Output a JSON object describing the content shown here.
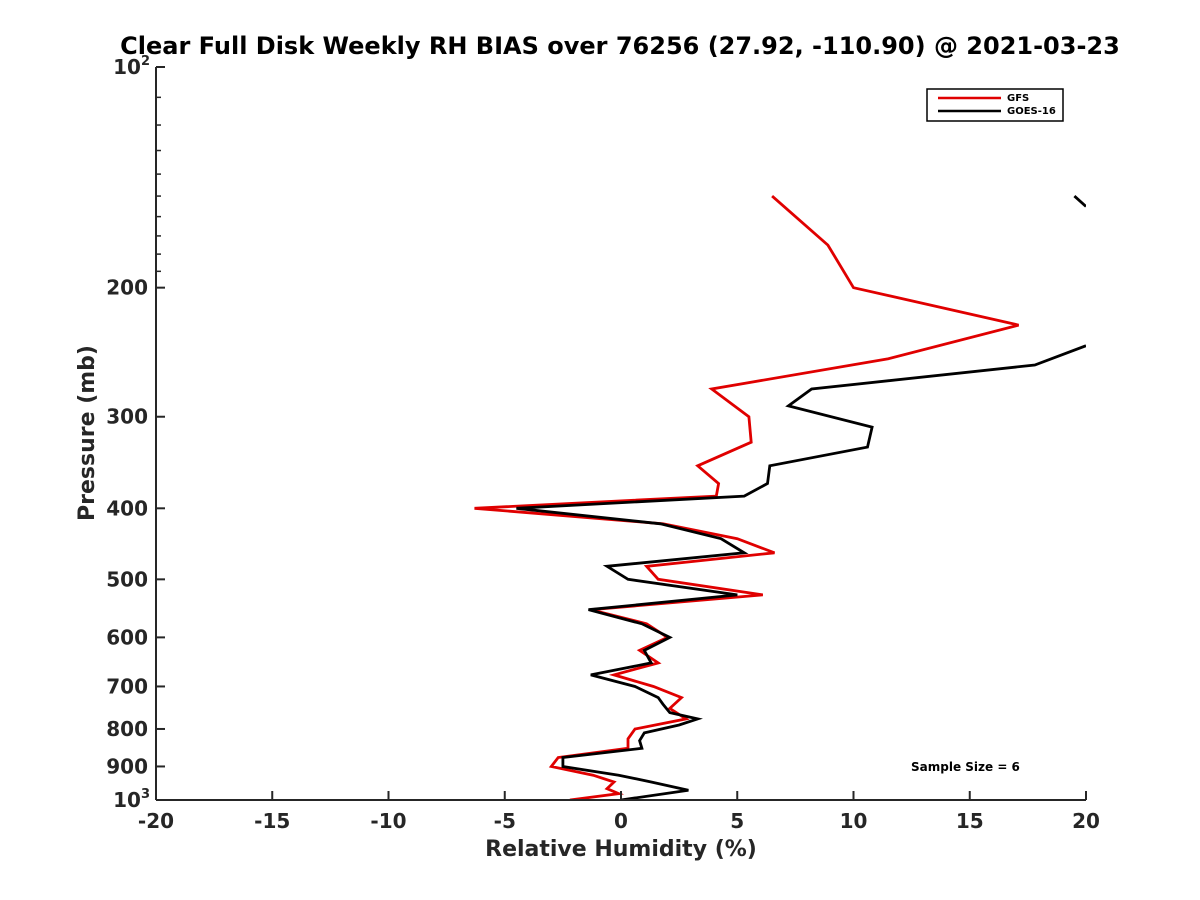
{
  "chart_data": {
    "type": "line",
    "title": "Clear Full Disk Weekly RH BIAS over 76256 (27.92, -110.90) @ 2021-03-23",
    "xlabel": "Relative Humidity (%)",
    "ylabel": "Pressure (mb)",
    "xlim": [
      -20,
      20
    ],
    "ylim": [
      100,
      1000
    ],
    "yscale": "log",
    "yreversed": true,
    "grid": false,
    "legend_position": "top-right",
    "x_ticks": [
      "-20",
      "-15",
      "-10",
      "-5",
      "0",
      "5",
      "10",
      "15",
      "20"
    ],
    "x_tick_values": [
      -20,
      -15,
      -10,
      -5,
      0,
      5,
      10,
      15,
      20
    ],
    "y_ticks": [
      {
        "value": 100,
        "base": "10",
        "exp": "2"
      },
      {
        "value": 200,
        "label": "200"
      },
      {
        "value": 300,
        "label": "300"
      },
      {
        "value": 400,
        "label": "400"
      },
      {
        "value": 500,
        "label": "500"
      },
      {
        "value": 600,
        "label": "600"
      },
      {
        "value": 700,
        "label": "700"
      },
      {
        "value": 800,
        "label": "800"
      },
      {
        "value": 900,
        "label": "900"
      },
      {
        "value": 1000,
        "base": "10",
        "exp": "3"
      }
    ],
    "annotation": "Sample Size = 6",
    "series": [
      {
        "name": "GFS",
        "color": "#e00000",
        "points": [
          [
            6.5,
            150
          ],
          [
            8.9,
            175
          ],
          [
            10.0,
            200
          ],
          [
            17.1,
            225
          ],
          [
            11.5,
            250
          ],
          [
            3.9,
            275
          ],
          [
            5.5,
            300
          ],
          [
            5.6,
            325
          ],
          [
            3.3,
            350
          ],
          [
            4.2,
            370
          ],
          [
            4.1,
            385
          ],
          [
            -6.3,
            400
          ],
          [
            1.8,
            420
          ],
          [
            5.0,
            440
          ],
          [
            6.6,
            460
          ],
          [
            1.1,
            480
          ],
          [
            1.6,
            500
          ],
          [
            6.1,
            525
          ],
          [
            -1.3,
            550
          ],
          [
            1.1,
            575
          ],
          [
            2.0,
            600
          ],
          [
            0.8,
            625
          ],
          [
            1.6,
            650
          ],
          [
            -0.3,
            675
          ],
          [
            1.4,
            700
          ],
          [
            2.6,
            725
          ],
          [
            2.1,
            750
          ],
          [
            2.8,
            775
          ],
          [
            0.6,
            800
          ],
          [
            0.3,
            825
          ],
          [
            0.3,
            850
          ],
          [
            -2.7,
            875
          ],
          [
            -3.0,
            900
          ],
          [
            -1.2,
            925
          ],
          [
            -0.3,
            945
          ],
          [
            -0.6,
            965
          ],
          [
            -0.1,
            980
          ],
          [
            -2.2,
            1000
          ]
        ]
      },
      {
        "name": "GOES-16",
        "color": "#000000",
        "segments": [
          [
            [
              19.5,
              150
            ],
            [
              20.0,
              155
            ]
          ],
          [
            [
              20.0,
              240
            ],
            [
              17.8,
              255
            ],
            [
              8.2,
              275
            ],
            [
              7.2,
              290
            ],
            [
              10.8,
              310
            ],
            [
              10.6,
              330
            ],
            [
              6.4,
              350
            ],
            [
              6.3,
              370
            ],
            [
              5.3,
              385
            ],
            [
              -4.5,
              400
            ],
            [
              1.7,
              420
            ],
            [
              4.3,
              440
            ],
            [
              5.3,
              460
            ],
            [
              -0.6,
              480
            ],
            [
              0.3,
              500
            ],
            [
              5.0,
              525
            ],
            [
              -1.4,
              550
            ],
            [
              0.9,
              575
            ],
            [
              2.1,
              600
            ],
            [
              1.0,
              625
            ],
            [
              1.3,
              650
            ],
            [
              -1.3,
              675
            ],
            [
              0.6,
              700
            ],
            [
              1.6,
              725
            ],
            [
              1.8,
              740
            ],
            [
              2.1,
              760
            ],
            [
              3.3,
              775
            ],
            [
              2.5,
              790
            ],
            [
              1.0,
              810
            ],
            [
              0.8,
              830
            ],
            [
              0.9,
              850
            ],
            [
              -2.5,
              875
            ],
            [
              -2.5,
              900
            ],
            [
              -0.1,
              925
            ],
            [
              1.3,
              945
            ],
            [
              2.9,
              970
            ],
            [
              0.0,
              1000
            ]
          ]
        ]
      }
    ]
  }
}
